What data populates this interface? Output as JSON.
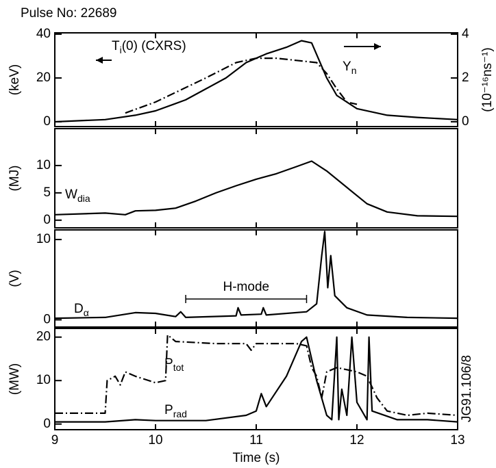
{
  "chart_data": [
    {
      "type": "line",
      "title": "Pulse No: 22689",
      "ylabel": "(keV)",
      "y2label": "(10⁻¹⁶ns⁻¹)",
      "xlim": [
        9,
        13
      ],
      "ylim": [
        -2.2,
        40.6
      ],
      "yticks": [
        0,
        20,
        40
      ],
      "y2lim": [
        -0.22,
        4.06
      ],
      "y2ticks": [
        0,
        2,
        4
      ],
      "series": [
        {
          "name": "Ti(0) (CXRS)",
          "color": "#000000",
          "style": "dash-dot",
          "x": [
            9.7,
            10,
            10.5,
            10.8,
            11,
            11.2,
            11.4,
            11.6,
            11.7,
            11.8,
            11.9,
            12.0
          ],
          "values": [
            4,
            9,
            20,
            27,
            29,
            29,
            28,
            27,
            22,
            15,
            9,
            8
          ]
        },
        {
          "name": "Yn",
          "color": "#000000",
          "style": "solid",
          "axis": "y2",
          "x": [
            9,
            9.5,
            9.8,
            10,
            10.3,
            10.5,
            10.7,
            10.9,
            11.1,
            11.3,
            11.45,
            11.55,
            11.7,
            11.8,
            12,
            12.3,
            12.6,
            13
          ],
          "values": [
            0,
            0.1,
            0.3,
            0.5,
            1,
            1.5,
            2,
            2.7,
            3.1,
            3.4,
            3.7,
            3.6,
            2.0,
            1.2,
            0.6,
            0.3,
            0.2,
            0.1
          ]
        }
      ]
    },
    {
      "type": "line",
      "ylabel": "(MJ)",
      "xlim": [
        9,
        13
      ],
      "ylim": [
        -1.4,
        16.75
      ],
      "yticks": [
        0,
        5,
        10
      ],
      "series": [
        {
          "name": "Wdia",
          "color": "#000000",
          "style": "solid",
          "x": [
            9,
            9.5,
            9.7,
            9.8,
            10,
            10.2,
            10.4,
            10.6,
            10.8,
            11,
            11.2,
            11.4,
            11.55,
            11.7,
            11.9,
            12.1,
            12.3,
            12.6,
            13
          ],
          "values": [
            1,
            1.3,
            1,
            1.7,
            1.8,
            2.2,
            3.5,
            5,
            6.3,
            7.5,
            8.5,
            9.8,
            10.8,
            9,
            6,
            3,
            1.5,
            0.8,
            0.7
          ]
        }
      ]
    },
    {
      "type": "line",
      "ylabel": "(V)",
      "xlim": [
        9,
        13
      ],
      "ylim": [
        -0.9,
        11.2
      ],
      "yticks": [
        0,
        10
      ],
      "annotations": [
        {
          "text": "H-mode",
          "x": [
            10.3,
            11.5
          ]
        }
      ],
      "series": [
        {
          "name": "Dα",
          "color": "#000000",
          "style": "solid",
          "x": [
            9,
            9.5,
            9.8,
            10,
            10.2,
            10.25,
            10.3,
            10.8,
            10.82,
            10.85,
            11.05,
            11.07,
            11.1,
            11.5,
            11.6,
            11.65,
            11.68,
            11.71,
            11.74,
            11.78,
            11.9,
            12.1,
            12.5,
            13
          ],
          "values": [
            0.2,
            0.3,
            0.9,
            0.8,
            0.4,
            1,
            0.3,
            0.5,
            1.5,
            0.6,
            0.7,
            1.5,
            0.6,
            1,
            2,
            8,
            11,
            4,
            8,
            3,
            1.5,
            0.6,
            0.3,
            0.2
          ]
        }
      ]
    },
    {
      "type": "line",
      "ylabel": "(MW)",
      "xlabel": "Time (s)",
      "xlim": [
        9,
        13
      ],
      "xticks": [
        9,
        10,
        11,
        12,
        13
      ],
      "ylim": [
        -1.3,
        22
      ],
      "yticks": [
        0,
        10,
        20
      ],
      "footnote": "JG91.106/8",
      "series": [
        {
          "name": "Ptot",
          "color": "#000000",
          "style": "dash-dot",
          "x": [
            9,
            9.5,
            9.52,
            9.6,
            9.65,
            9.7,
            9.8,
            10,
            10.1,
            10.12,
            10.2,
            10.6,
            10.9,
            10.95,
            11,
            11.4,
            11.5,
            11.55,
            11.6,
            11.65,
            11.7,
            11.8,
            12,
            12.1,
            12.2,
            12.3,
            12.5,
            12.7,
            13
          ],
          "values": [
            2.5,
            2.5,
            10,
            11,
            9,
            12,
            11,
            9.5,
            10,
            20.5,
            19,
            18.5,
            18.5,
            17,
            18.5,
            18.5,
            18,
            13,
            11,
            6,
            12,
            13,
            12,
            11,
            6,
            3,
            2,
            2.5,
            2
          ]
        },
        {
          "name": "Prad",
          "color": "#000000",
          "style": "solid",
          "x": [
            9,
            9.5,
            9.8,
            10,
            10.5,
            10.9,
            11.0,
            11.05,
            11.1,
            11.3,
            11.45,
            11.5,
            11.6,
            11.7,
            11.75,
            11.8,
            11.82,
            11.85,
            11.9,
            11.95,
            12.0,
            12.1,
            12.12,
            12.15,
            12.4,
            12.7,
            13
          ],
          "values": [
            0.5,
            0.5,
            1,
            0.8,
            0.8,
            2,
            3,
            7,
            4,
            11,
            19,
            20,
            10,
            2,
            1,
            20,
            1,
            8,
            2,
            20,
            5,
            1,
            20,
            3,
            1,
            1,
            0.5
          ]
        }
      ]
    }
  ]
}
